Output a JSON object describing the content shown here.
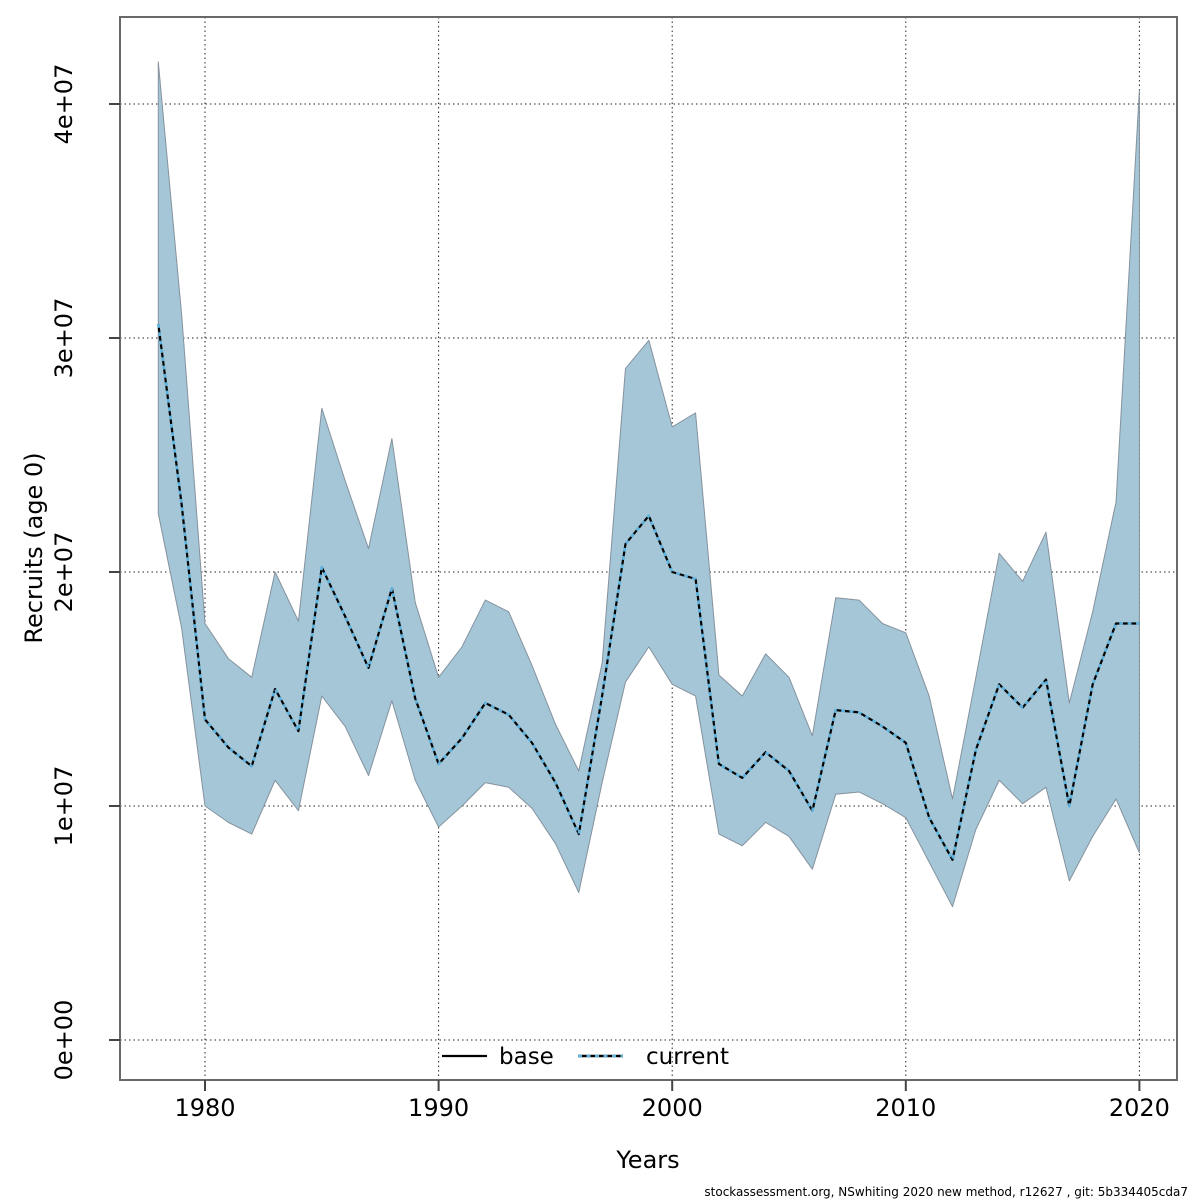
{
  "page": {
    "background": "#ffffff"
  },
  "axes": {
    "x_title": "Years",
    "y_title": "Recruits (age 0)",
    "x_tick_labels": [
      "1980",
      "1990",
      "2000",
      "2010",
      "2020"
    ],
    "y_tick_labels": [
      "0e+00",
      "1e+07",
      "2e+07",
      "3e+07",
      "4e+07"
    ]
  },
  "legend": {
    "base_label": "base",
    "current_label": "current"
  },
  "footer": {
    "text": "stockassessment.org, NSwhiting 2020 new method, r12627 , git: 5b334405cda7"
  },
  "colors": {
    "band": "#a4c6d6",
    "band_border": "#85929e",
    "base_line": "#000000",
    "current_line": "#5fb2dc",
    "box": "#696969",
    "grid": "#000000"
  },
  "chart_data": {
    "type": "line",
    "title": "",
    "xlabel": "Years",
    "ylabel": "Recruits (age 0)",
    "grid": true,
    "legend_position": "bottom-center",
    "xlim": [
      1976.4,
      2021.6
    ],
    "ylim": [
      -1700000,
      43700000
    ],
    "x_tick_values": [
      1980,
      1990,
      2000,
      2010,
      2020
    ],
    "y_tick_values": [
      0,
      10000000,
      20000000,
      30000000,
      40000000
    ],
    "x": [
      1978,
      1979,
      1980,
      1981,
      1982,
      1983,
      1984,
      1985,
      1986,
      1987,
      1988,
      1989,
      1990,
      1991,
      1992,
      1993,
      1994,
      1995,
      1996,
      1997,
      1998,
      1999,
      2000,
      2001,
      2002,
      2003,
      2004,
      2005,
      2006,
      2007,
      2008,
      2009,
      2010,
      2011,
      2012,
      2013,
      2014,
      2015,
      2016,
      2017,
      2018,
      2019,
      2020
    ],
    "series": [
      {
        "name": "base",
        "style": "solid",
        "color": "#000000",
        "values": [
          30600000,
          22900000,
          13700000,
          12500000,
          11700000,
          15000000,
          13200000,
          20200000,
          18100000,
          15900000,
          19300000,
          14600000,
          11800000,
          12900000,
          14400000,
          13900000,
          12700000,
          11000000,
          8800000,
          14700000,
          21200000,
          22400000,
          20000000,
          19700000,
          11800000,
          11200000,
          12300000,
          11500000,
          9800000,
          14100000,
          14000000,
          13400000,
          12700000,
          9500000,
          7700000,
          12400000,
          15200000,
          14200000,
          15400000,
          10000000,
          15200000,
          17800000,
          17800000
        ]
      },
      {
        "name": "current",
        "style": "dotted",
        "color": "#5fb2dc",
        "values": [
          30600000,
          22900000,
          13700000,
          12500000,
          11700000,
          15000000,
          13200000,
          20200000,
          18100000,
          15900000,
          19300000,
          14600000,
          11800000,
          12900000,
          14400000,
          13900000,
          12700000,
          11000000,
          8800000,
          14700000,
          21200000,
          22400000,
          20000000,
          19700000,
          11800000,
          11200000,
          12300000,
          11500000,
          9800000,
          14100000,
          14000000,
          13400000,
          12700000,
          9500000,
          7700000,
          12400000,
          15200000,
          14200000,
          15400000,
          10000000,
          15200000,
          17800000,
          17800000
        ]
      }
    ],
    "band": {
      "name": "confidence-band",
      "color": "#a4c6d6",
      "lower": [
        22500000,
        17600000,
        10000000,
        9300000,
        8800000,
        11100000,
        9800000,
        14700000,
        13400000,
        11300000,
        14500000,
        11100000,
        9100000,
        10000000,
        11000000,
        10800000,
        9900000,
        8400000,
        6300000,
        11000000,
        15300000,
        16800000,
        15200000,
        14700000,
        8800000,
        8300000,
        9300000,
        8700000,
        7300000,
        10500000,
        10600000,
        10100000,
        9500000,
        7600000,
        5700000,
        9000000,
        11100000,
        10100000,
        10800000,
        6800000,
        8700000,
        10300000,
        8000000
      ],
      "upper": [
        41800000,
        31000000,
        17800000,
        16300000,
        15500000,
        20000000,
        17900000,
        27000000,
        23900000,
        21000000,
        25700000,
        18700000,
        15500000,
        16800000,
        18800000,
        18300000,
        16000000,
        13500000,
        11500000,
        16100000,
        28700000,
        29900000,
        26200000,
        26800000,
        15600000,
        14700000,
        16500000,
        15500000,
        13000000,
        18900000,
        18800000,
        17800000,
        17400000,
        14700000,
        10300000,
        15500000,
        20800000,
        19600000,
        21700000,
        14400000,
        18300000,
        23000000,
        40600000
      ]
    }
  }
}
